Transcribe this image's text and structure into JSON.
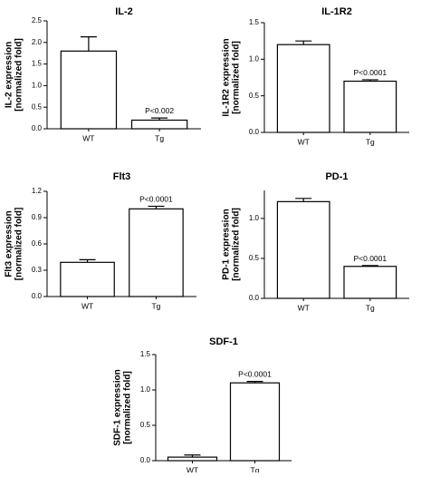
{
  "chart_data": [
    {
      "type": "bar",
      "title": "IL-2",
      "ylabel_lines": [
        "IL-2 expression",
        "[normalized fold]"
      ],
      "categories": [
        "WT",
        "Tg"
      ],
      "values": [
        1.8,
        0.2
      ],
      "errors": [
        0.33,
        0.05
      ],
      "ylim": [
        0,
        2.5
      ],
      "yticks": [
        "0.0",
        "0.5",
        "1.0",
        "1.5",
        "2.0",
        "2.5"
      ],
      "annotations": [
        "",
        "P<0.002"
      ]
    },
    {
      "type": "bar",
      "title": "IL-1R2",
      "ylabel_lines": [
        "IL-1R2 expression",
        "[normalized fold]"
      ],
      "categories": [
        "WT",
        "Tg"
      ],
      "values": [
        1.2,
        0.7
      ],
      "errors": [
        0.05,
        0.02
      ],
      "ylim": [
        0,
        1.5
      ],
      "yticks": [
        "0.0",
        "0.5",
        "1.0",
        "1.5"
      ],
      "annotations": [
        "",
        "P<0.0001"
      ]
    },
    {
      "type": "bar",
      "title": "Flt3",
      "ylabel_lines": [
        "Flt3 expression",
        "[normalized fold]"
      ],
      "categories": [
        "WT",
        "Tg"
      ],
      "values": [
        0.39,
        1.0
      ],
      "errors": [
        0.03,
        0.03
      ],
      "ylim": [
        0,
        1.2
      ],
      "yticks": [
        "0.0",
        "0.3",
        "0.6",
        "0.9",
        "1.2"
      ],
      "annotations": [
        "",
        "P<0.0001"
      ]
    },
    {
      "type": "bar",
      "title": "PD-1",
      "ylabel_lines": [
        "PD-1 expression",
        "[normalized fold]"
      ],
      "categories": [
        "WT",
        "Tg"
      ],
      "values": [
        1.21,
        0.4
      ],
      "errors": [
        0.04,
        0.01
      ],
      "ylim": [
        0,
        1.35
      ],
      "yticks": [
        "0.0",
        "0.5",
        "1.0"
      ],
      "annotations": [
        "",
        "P<0.0001"
      ]
    },
    {
      "type": "bar",
      "title": "SDF-1",
      "ylabel_lines": [
        "SDF-1 expression",
        "[normalized fold]"
      ],
      "categories": [
        "WT",
        "Tg"
      ],
      "values": [
        0.05,
        1.1
      ],
      "errors": [
        0.03,
        0.02
      ],
      "ylim": [
        0,
        1.5
      ],
      "yticks": [
        "0.0",
        "0.5",
        "1.0",
        "1.5"
      ],
      "annotations": [
        "",
        "P<0.0001"
      ]
    }
  ]
}
